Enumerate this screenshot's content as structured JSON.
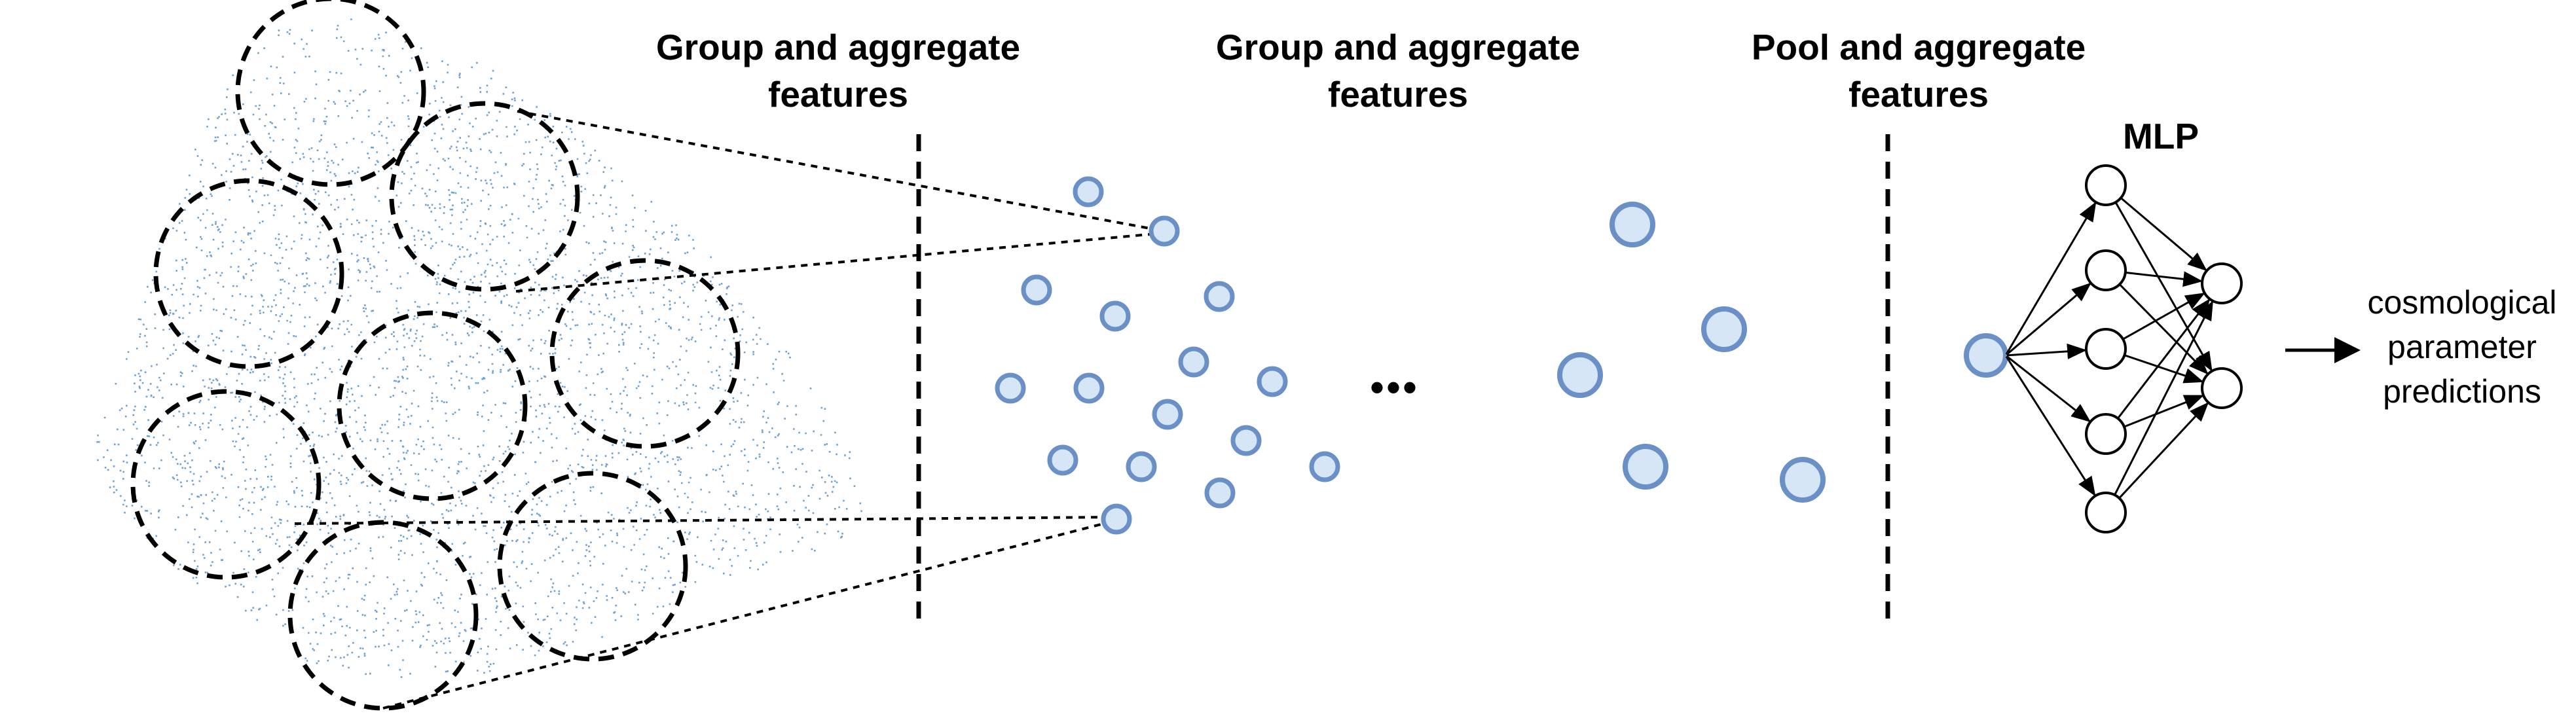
{
  "stages": [
    {
      "line1": "Group and aggregate",
      "line2": "features"
    },
    {
      "line1": "Group and aggregate",
      "line2": "features"
    },
    {
      "line1": "Pool and aggregate",
      "line2": "features"
    }
  ],
  "mlp": {
    "title": "MLP"
  },
  "output": {
    "line1": "cosmological",
    "line2": "parameter",
    "line3": "predictions"
  },
  "ellipsis": "•••",
  "colors": {
    "point_cloud": "#3b82c4",
    "node_fill": "#d6e6f7",
    "node_stroke": "#6a90c6",
    "mlp_node_stroke": "#000000",
    "ink": "#000000"
  }
}
